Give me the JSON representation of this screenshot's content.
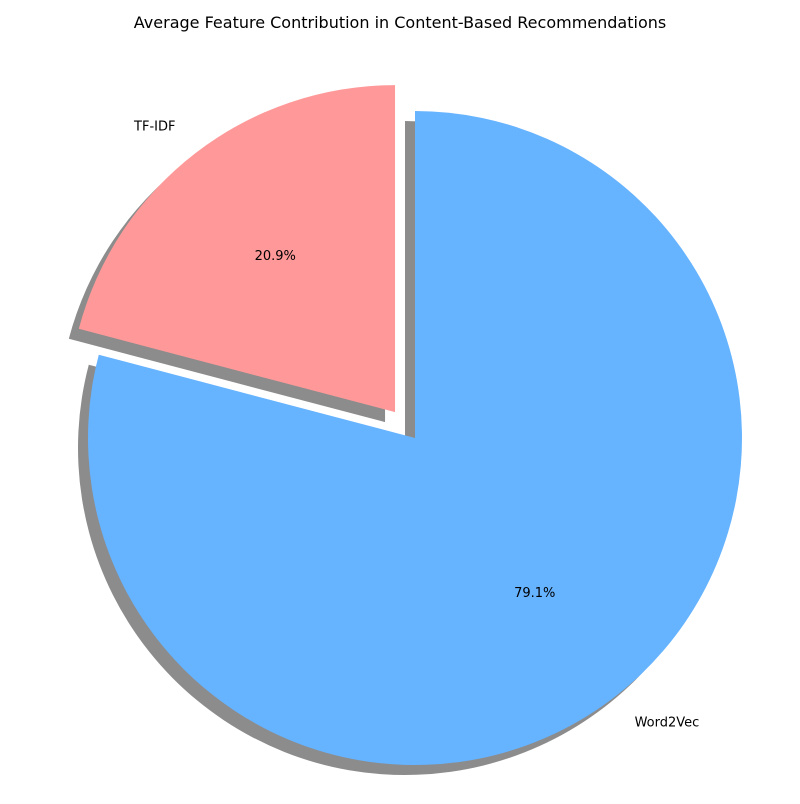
{
  "chart_data": {
    "type": "pie",
    "title": "Average Feature Contribution in Content-Based Recommendations",
    "slices": [
      {
        "label": "TF-IDF",
        "value": 20.9,
        "pct_label": "20.9%",
        "color": "#ff9999",
        "exploded": true
      },
      {
        "label": "Word2Vec",
        "value": 79.1,
        "pct_label": "79.1%",
        "color": "#66b3ff",
        "exploded": false
      }
    ],
    "start_angle_deg": 90,
    "direction": "counterclockwise",
    "shadow": true,
    "legend": "none"
  }
}
